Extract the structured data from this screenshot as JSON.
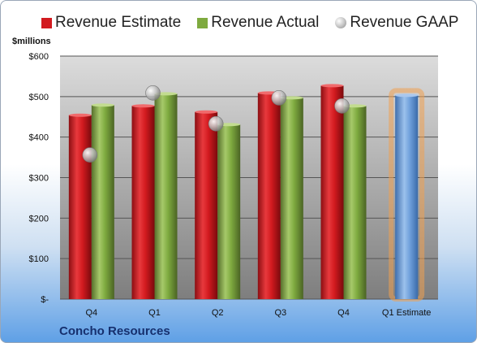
{
  "legend": {
    "estimate": "Revenue Estimate",
    "actual": "Revenue Actual",
    "gaap": "Revenue GAAP"
  },
  "unit_label": "$millions",
  "company": "Concho Resources",
  "colors": {
    "estimate": "#d21a1f",
    "actual": "#7eaa3f",
    "gaap": "#b0b0b0",
    "projection": "#6e9fdb",
    "projection_glow": "#f0a050"
  },
  "chart_data": {
    "type": "bar",
    "categories": [
      "Q4",
      "Q1",
      "Q2",
      "Q3",
      "Q4",
      "Q1 Estimate"
    ],
    "ylabel": "$millions",
    "ylim": [
      0,
      600
    ],
    "yticks": [
      {
        "value": 0,
        "label": "$-"
      },
      {
        "value": 100,
        "label": "$100"
      },
      {
        "value": 200,
        "label": "$200"
      },
      {
        "value": 300,
        "label": "$300"
      },
      {
        "value": 400,
        "label": "$400"
      },
      {
        "value": 500,
        "label": "$500"
      },
      {
        "value": 600,
        "label": "$600"
      }
    ],
    "series": [
      {
        "name": "Revenue Estimate",
        "values": [
          454,
          477,
          462,
          509,
          527,
          503
        ]
      },
      {
        "name": "Revenue Actual",
        "values": [
          479,
          507,
          431,
          497,
          477,
          null
        ]
      },
      {
        "name": "Revenue GAAP",
        "values": [
          356,
          509,
          433,
          497,
          477,
          null
        ]
      }
    ],
    "grid": true,
    "legend": "top"
  }
}
